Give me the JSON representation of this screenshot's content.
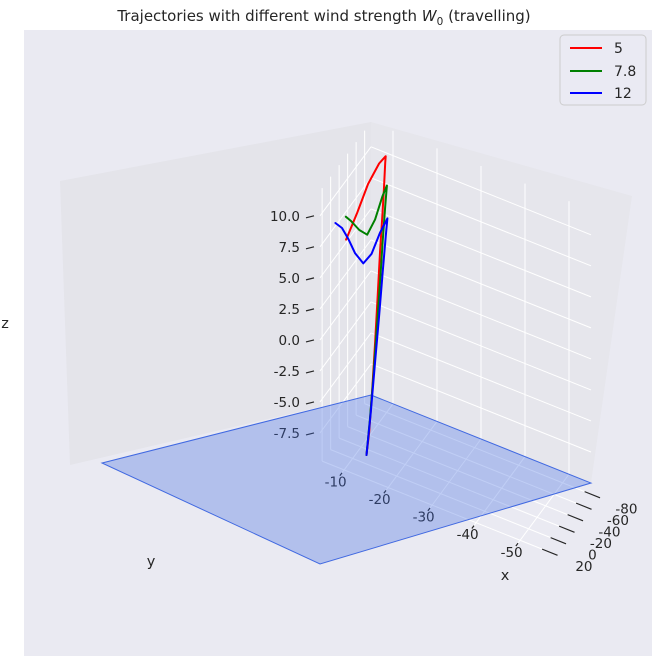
{
  "chart_data": {
    "type": "line",
    "projection": "3d",
    "title": "Trajectories with different wind strength W₀ (travelling)",
    "title_parts": {
      "prefix": "Trajectories with different wind strength ",
      "symbol": "W",
      "subscript": "0",
      "suffix": " (travelling)"
    },
    "xlabel": "x",
    "ylabel": "y",
    "zlabel": "z",
    "xlim": [
      -55,
      -5
    ],
    "ylim": [
      -95,
      25
    ],
    "zlim": [
      -10,
      12
    ],
    "x_ticks": [
      "-50",
      "-40",
      "-30",
      "-20",
      "-10"
    ],
    "y_ticks": [
      "-80",
      "-60",
      "-40",
      "-20",
      "0",
      "20"
    ],
    "z_ticks": [
      "10.0",
      "7.5",
      "5.0",
      "2.5",
      "0.0",
      "-2.5",
      "-5.0",
      "-7.5"
    ],
    "grid": true,
    "legend_position": "top-right",
    "ground_plane": {
      "z": -10,
      "color": "#4169e1"
    },
    "series": [
      {
        "name": "5",
        "color": "#ff0000",
        "points": [
          [
            -12,
            -12,
            -10
          ],
          [
            -12,
            -18,
            -8.5
          ],
          [
            -12,
            -25,
            -5.5
          ],
          [
            -12,
            -32,
            -2
          ],
          [
            -12,
            -38,
            1.5
          ],
          [
            -12,
            -44,
            5
          ],
          [
            -12,
            -49,
            7.5
          ],
          [
            -12,
            -53,
            9.5
          ],
          [
            -12,
            -56,
            11.5
          ],
          [
            -12,
            -57,
            12
          ],
          [
            -10.5,
            -57,
            11.2
          ],
          [
            -8,
            -57,
            9.2
          ],
          [
            -5.5,
            -57,
            6.5
          ],
          [
            -3,
            -57,
            4
          ]
        ]
      },
      {
        "name": "7.8",
        "color": "#008000",
        "points": [
          [
            -12,
            -12,
            -10
          ],
          [
            -12,
            -20,
            -7.5
          ],
          [
            -12,
            -28,
            -4.5
          ],
          [
            -12,
            -36,
            -1
          ],
          [
            -12,
            -44,
            2.5
          ],
          [
            -12,
            -50,
            5.5
          ],
          [
            -12,
            -56,
            8
          ],
          [
            -12,
            -60,
            9.5
          ],
          [
            -11,
            -60,
            8.5
          ],
          [
            -9.5,
            -58,
            6.5
          ],
          [
            -8,
            -55,
            5.2
          ],
          [
            -6.5,
            -52,
            5.5
          ],
          [
            -5,
            -48,
            6.2
          ],
          [
            -4,
            -46,
            6.5
          ]
        ]
      },
      {
        "name": "12",
        "color": "#0000ff",
        "points": [
          [
            -12,
            -12,
            -10
          ],
          [
            -12,
            -22,
            -7
          ],
          [
            -12,
            -32,
            -3.5
          ],
          [
            -12,
            -42,
            0
          ],
          [
            -12,
            -50,
            3
          ],
          [
            -12,
            -57,
            5.5
          ],
          [
            -12,
            -61,
            6.8
          ],
          [
            -10.5,
            -59,
            5.5
          ],
          [
            -9,
            -55,
            3.8
          ],
          [
            -7.5,
            -51,
            3
          ],
          [
            -6,
            -47,
            3.8
          ],
          [
            -5,
            -42,
            5
          ],
          [
            -4,
            -37,
            6
          ],
          [
            -3,
            -32,
            6.5
          ]
        ]
      }
    ]
  }
}
